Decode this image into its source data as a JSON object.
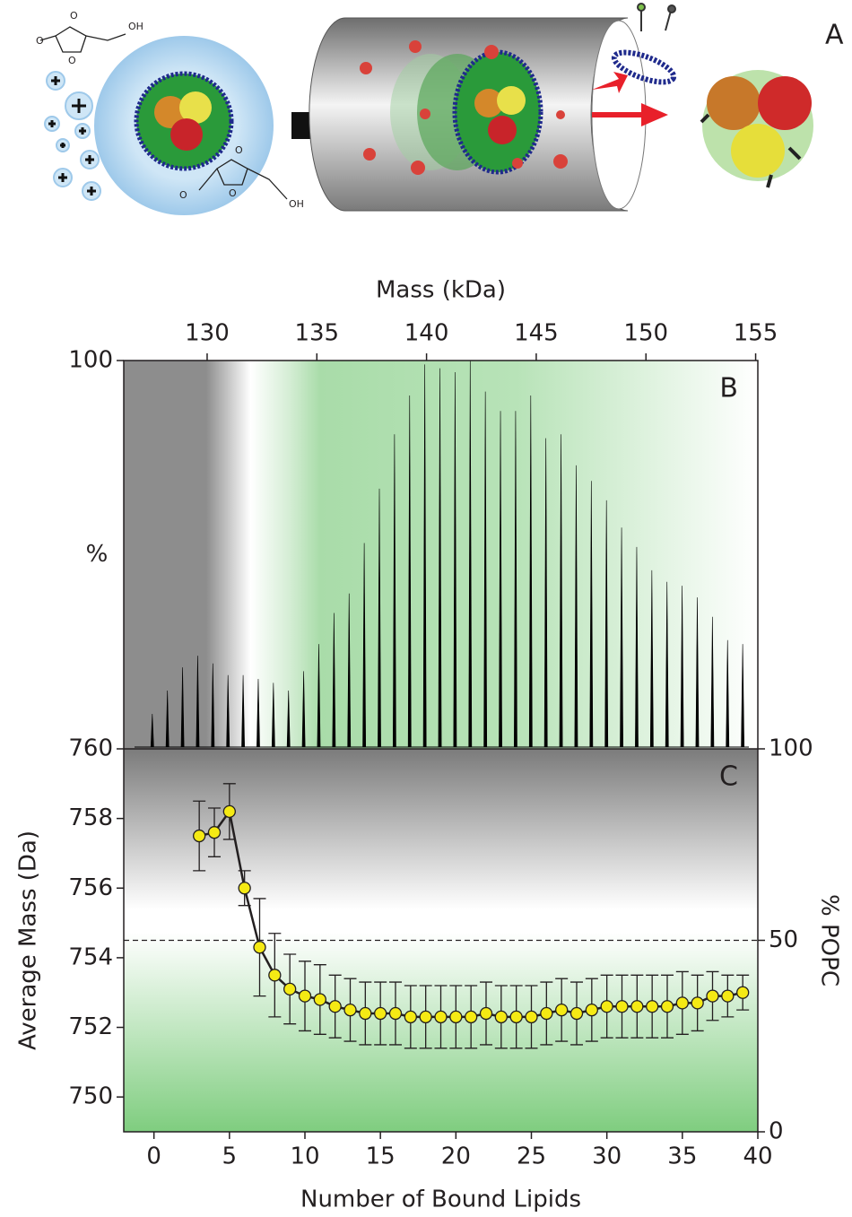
{
  "panel_a": {
    "label": "A",
    "atom_o": "O",
    "atom_oh": "OH"
  },
  "chart_data": [
    {
      "type": "spectrum",
      "panel": "B",
      "x_label": "Mass (kDa)",
      "y_label": "%",
      "xlim": [
        126.2,
        155.1
      ],
      "xticks": [
        130,
        135,
        140,
        145,
        150,
        155
      ],
      "ylim": [
        0,
        100
      ],
      "yticks": [
        100
      ],
      "series": [
        {
          "color": "#000000",
          "x": [
            127.5,
            128.19,
            128.88,
            129.57,
            130.26,
            130.95,
            131.64,
            132.33,
            133.02,
            133.71,
            134.4,
            135.09,
            135.78,
            136.47,
            137.16,
            137.85,
            138.54,
            139.23,
            139.92,
            140.61,
            141.3,
            141.99,
            142.68,
            143.37,
            144.06,
            144.75,
            145.44,
            146.13,
            146.82,
            147.51,
            148.2,
            148.89,
            149.58,
            150.27,
            150.96,
            151.65,
            152.34,
            153.03,
            153.72,
            154.41
          ],
          "values": [
            9,
            15,
            21,
            24,
            22,
            19,
            19,
            18,
            17,
            15,
            20,
            27,
            35,
            40,
            53,
            67,
            81,
            91,
            99,
            98,
            97,
            100,
            92,
            87,
            87,
            91,
            80,
            81,
            73,
            69,
            64,
            57,
            52,
            46,
            43,
            42,
            39,
            34,
            28,
            27
          ]
        }
      ]
    },
    {
      "type": "scatter",
      "panel": "C",
      "x_label": "Number of Bound Lipids",
      "y_label": "Average Mass (Da)",
      "y2_label": "% POPC",
      "xlim": [
        -2,
        40
      ],
      "xticks": [
        0,
        5,
        10,
        15,
        20,
        25,
        30,
        35,
        40
      ],
      "ylim": [
        749,
        760
      ],
      "yticks": [
        750,
        752,
        754,
        756,
        758,
        760
      ],
      "y2lim": [
        0,
        100
      ],
      "y2ticks": [
        0,
        50,
        100
      ],
      "reference_y2": 50,
      "series": [
        {
          "color": "#f5ea14",
          "x": [
            3,
            4,
            5,
            6,
            7,
            8,
            9,
            10,
            11,
            12,
            13,
            14,
            15,
            16,
            17,
            18,
            19,
            20,
            21,
            22,
            23,
            24,
            25,
            26,
            27,
            28,
            29,
            30,
            31,
            32,
            33,
            34,
            35,
            36,
            37,
            38,
            39
          ],
          "values": [
            757.5,
            757.6,
            758.2,
            756.0,
            754.3,
            753.5,
            753.1,
            752.9,
            752.8,
            752.6,
            752.5,
            752.4,
            752.4,
            752.4,
            752.3,
            752.3,
            752.3,
            752.3,
            752.3,
            752.4,
            752.3,
            752.3,
            752.3,
            752.4,
            752.5,
            752.4,
            752.5,
            752.6,
            752.6,
            752.6,
            752.6,
            752.6,
            752.7,
            752.7,
            752.9,
            752.9,
            753.0
          ],
          "errors": [
            1.0,
            0.7,
            0.8,
            0.5,
            1.4,
            1.2,
            1.0,
            1.0,
            1.0,
            0.9,
            0.9,
            0.9,
            0.9,
            0.9,
            0.9,
            0.9,
            0.9,
            0.9,
            0.9,
            0.9,
            0.9,
            0.9,
            0.9,
            0.9,
            0.9,
            0.9,
            0.9,
            0.9,
            0.9,
            0.9,
            0.9,
            0.9,
            0.9,
            0.8,
            0.7,
            0.6,
            0.5
          ]
        }
      ]
    }
  ]
}
